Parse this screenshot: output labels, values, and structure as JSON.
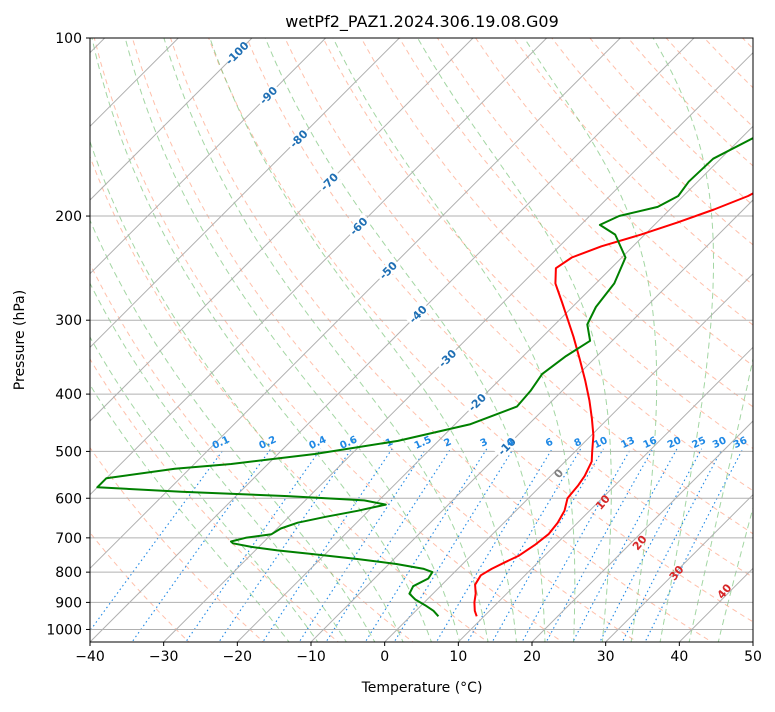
{
  "chart_data": {
    "type": "line",
    "title": "wetPf2_PAZ1.2024.306.19.08.G09",
    "xlabel": "Temperature (°C)",
    "ylabel": "Pressure (hPa)",
    "xlim": [
      -40,
      50
    ],
    "ylim_pressure": [
      1050,
      100
    ],
    "y_scale": "log",
    "skew": "skew-T (45°)",
    "grid": true,
    "x_ticks": [
      "−40",
      "−30",
      "−20",
      "−10",
      "0",
      "10",
      "20",
      "30",
      "40",
      "50"
    ],
    "y_ticks": [
      "100",
      "200",
      "300",
      "400",
      "500",
      "600",
      "700",
      "800",
      "900",
      "1000"
    ],
    "isotherm_labels": [
      "-100",
      "-90",
      "-80",
      "-70",
      "-60",
      "-50",
      "-40",
      "-30",
      "-20",
      "-10"
    ],
    "mixing_ratio_labels": [
      "0.1",
      "0.2",
      "0.4",
      "0.6",
      "1",
      "1.5",
      "2",
      "3",
      "4",
      "6",
      "8",
      "10",
      "13",
      "16",
      "20",
      "25",
      "30",
      "36"
    ],
    "moist_adiabat_labels": [
      "0",
      "10",
      "20",
      "30",
      "40"
    ],
    "colors": {
      "temperature": "#ff0000",
      "dewpoint": "#008000",
      "dry_adiabat": "#ff8c66",
      "moist_adiabat": "#66bb66",
      "mixing_ratio": "#1e88e5",
      "isotherm_label": "#1f6fb4",
      "moist_label": "#d62728",
      "grid": "#b0b0b0"
    },
    "series": [
      {
        "name": "Temperature",
        "pressure": [
          950,
          930,
          900,
          870,
          840,
          810,
          790,
          770,
          750,
          720,
          690,
          660,
          630,
          600,
          570,
          550,
          520,
          500,
          470,
          440,
          410,
          380,
          350,
          320,
          300,
          280,
          260,
          245,
          235,
          225,
          215,
          205,
          195,
          185,
          175,
          165,
          150,
          135,
          125,
          115,
          108,
          100
        ],
        "temperature": [
          9.0,
          8.0,
          6.8,
          5.8,
          4.5,
          4.0,
          4.6,
          5.5,
          6.5,
          7.2,
          7.6,
          7.3,
          6.6,
          5.3,
          5.0,
          4.6,
          3.6,
          2.3,
          0.3,
          -2.2,
          -5.0,
          -8.2,
          -11.8,
          -15.8,
          -18.8,
          -22.0,
          -25.5,
          -27.5,
          -26.8,
          -24.3,
          -20.5,
          -17.2,
          -14.0,
          -11.2,
          -9.5,
          -8.4,
          -7.0,
          -5.8,
          -5.5,
          -5.2,
          -4.8,
          -4.4
        ]
      },
      {
        "name": "Dewpoint",
        "pressure": [
          950,
          930,
          910,
          890,
          870,
          845,
          820,
          800,
          790,
          775,
          760,
          745,
          735,
          725,
          715,
          710,
          700,
          690,
          675,
          660,
          645,
          630,
          615,
          605,
          595,
          585,
          575,
          555,
          535,
          525,
          505,
          480,
          450,
          420,
          395,
          370,
          345,
          325,
          305,
          285,
          260,
          235,
          215,
          207,
          200,
          193,
          185,
          175,
          160,
          145,
          130,
          115,
          100
        ],
        "temperature": [
          3.8,
          2.4,
          0.5,
          -1.6,
          -3.2,
          -3.7,
          -2.7,
          -3.0,
          -4.6,
          -9.0,
          -15.0,
          -22.0,
          -27.0,
          -31.0,
          -34.0,
          -34.5,
          -33.0,
          -30.0,
          -29.5,
          -28.0,
          -25.0,
          -21.5,
          -18.5,
          -22.0,
          -33.0,
          -48.0,
          -60.0,
          -60.0,
          -52.0,
          -45.0,
          -35.0,
          -25.5,
          -18.0,
          -14.0,
          -14.3,
          -15.0,
          -14.2,
          -13.0,
          -15.6,
          -16.8,
          -17.5,
          -19.5,
          -24.0,
          -27.4,
          -26.0,
          -22.0,
          -20.7,
          -21.2,
          -21.0,
          -17.8,
          -14.5,
          -10.5,
          -6.5
        ]
      }
    ]
  }
}
